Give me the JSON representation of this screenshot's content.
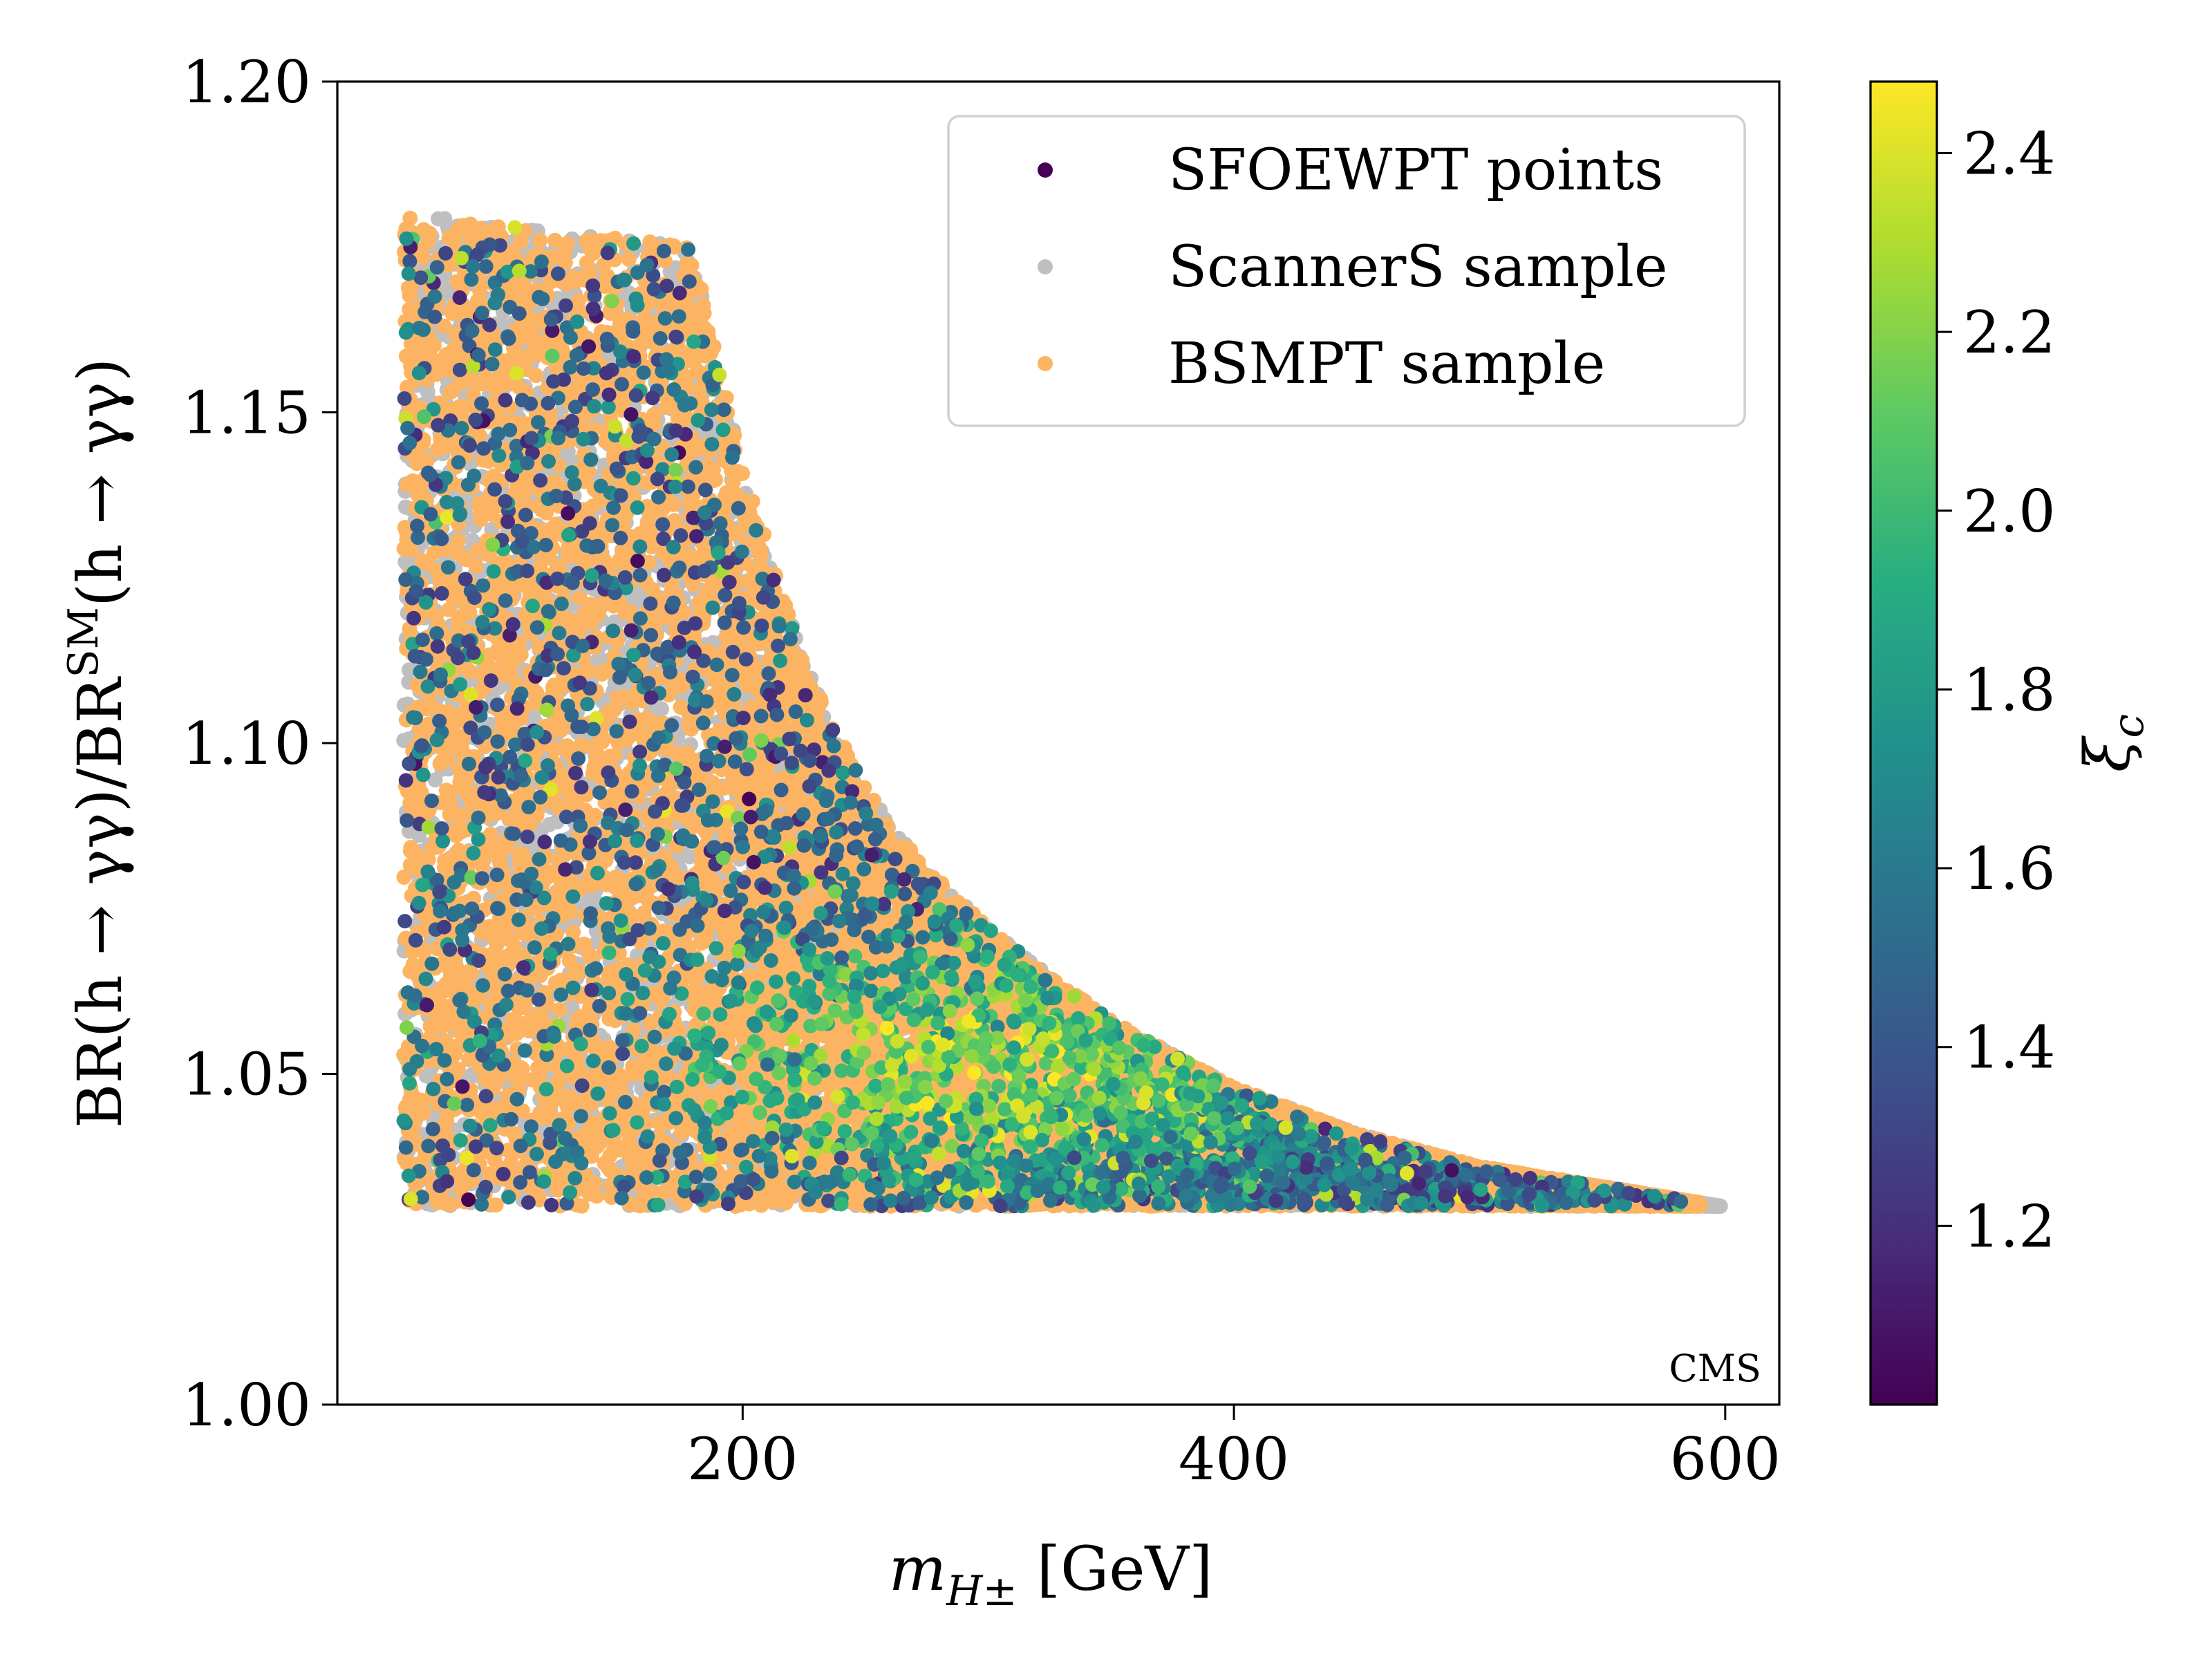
{
  "chart_data": {
    "type": "scatter",
    "title": "",
    "xlabel": "m_{H±} [GeV]",
    "xlabel_main": "m",
    "xlabel_sub": "H±",
    "xlabel_unit": " [GeV]",
    "ylabel": "BR(h → γγ)/BR^SM(h → γγ)",
    "ylabel_parts": {
      "pre": "BR(h → γγ)/BR",
      "sup": "SM",
      "post": "(h → γγ)"
    },
    "xlim": [
      35,
      622
    ],
    "ylim": [
      1.0,
      1.2
    ],
    "xticks": [
      200,
      400,
      600
    ],
    "xtick_labels": [
      "200",
      "400",
      "600"
    ],
    "yticks": [
      1.0,
      1.05,
      1.1,
      1.15,
      1.2
    ],
    "ytick_labels": [
      "1.00",
      "1.05",
      "1.10",
      "1.15",
      "1.20"
    ],
    "grid": false,
    "legend_position": "top-right",
    "legend": [
      {
        "label": "SFOEWPT points",
        "color": "#440154"
      },
      {
        "label": "ScannerS sample",
        "color": "#bfbfbf"
      },
      {
        "label": "BSMPT sample",
        "color": "#fdb462"
      }
    ],
    "annotation": "CMS",
    "colorbar": {
      "label": "ξ_c",
      "label_main": "ξ",
      "label_sub": "c",
      "cmap": "viridis",
      "range": [
        1.0,
        2.48
      ],
      "ticks": [
        1.2,
        1.4,
        1.6,
        1.8,
        2.0,
        2.2,
        2.4
      ],
      "tick_labels": [
        "1.2",
        "1.4",
        "1.6",
        "1.8",
        "2.0",
        "2.2",
        "2.4"
      ]
    },
    "region": {
      "x_min": 62,
      "y_min": 1.03,
      "y_max_left": 1.18,
      "x_plateau_end": 180,
      "upper_boundary": [
        [
          62,
          1.18
        ],
        [
          180,
          1.175
        ],
        [
          200,
          1.142
        ],
        [
          225,
          1.112
        ],
        [
          250,
          1.093
        ],
        [
          275,
          1.081
        ],
        [
          300,
          1.072
        ],
        [
          350,
          1.058
        ],
        [
          400,
          1.048
        ],
        [
          450,
          1.041
        ],
        [
          500,
          1.036
        ],
        [
          550,
          1.033
        ],
        [
          598,
          1.03
        ]
      ]
    },
    "series": [
      {
        "name": "ScannerS sample",
        "n_points": 9000,
        "color": "#bfbfbf",
        "distribution": "uniform over region, x up to 598 GeV"
      },
      {
        "name": "BSMPT sample",
        "n_points": 12000,
        "color": "#fdb462",
        "distribution": "dense fill of region, x up to 590 GeV"
      },
      {
        "name": "SFOEWPT points",
        "n_points": 3000,
        "color_by": "ξ_c",
        "range_c": [
          1.0,
          2.48
        ],
        "distribution": "concentrated below boundary; high ξ_c near x≈280–320, y≈1.05"
      }
    ]
  }
}
